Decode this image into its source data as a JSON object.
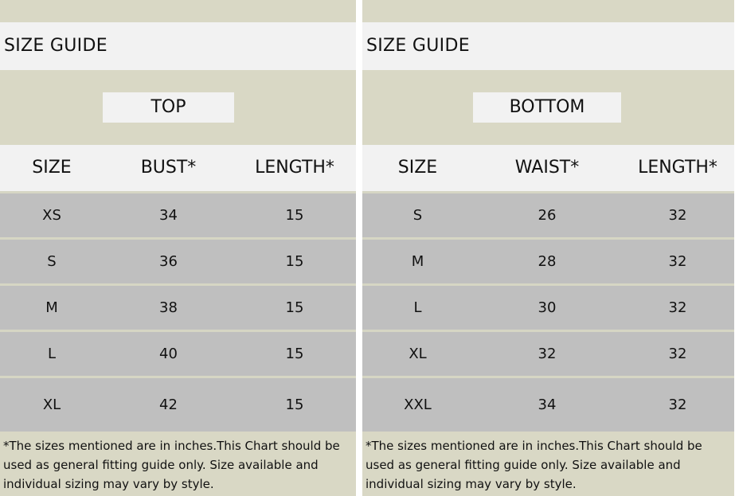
{
  "top": {
    "guide_title": "SIZE GUIDE",
    "section": "TOP",
    "headers": [
      "SIZE",
      "BUST*",
      "LENGTH*"
    ],
    "rows": [
      [
        "XS",
        "34",
        "15"
      ],
      [
        "S",
        "36",
        "15"
      ],
      [
        "M",
        "38",
        "15"
      ],
      [
        "L",
        "40",
        "15"
      ],
      [
        "XL",
        "42",
        "15"
      ]
    ],
    "note": "*The sizes mentioned are in inches.This Chart should be used as general fitting guide only. Size available and individual sizing may vary by style."
  },
  "bottom": {
    "guide_title": "SIZE GUIDE",
    "section": "BOTTOM",
    "headers": [
      "SIZE",
      "WAIST*",
      "LENGTH*"
    ],
    "rows": [
      [
        "S",
        "26",
        "32"
      ],
      [
        "M",
        "28",
        "32"
      ],
      [
        "L",
        "30",
        "32"
      ],
      [
        "XL",
        "32",
        "32"
      ],
      [
        "XXL",
        "34",
        "32"
      ]
    ],
    "note": "*The sizes mentioned are in inches.This Chart should be used as general fitting guide only. Size available and individual sizing may vary by style."
  }
}
